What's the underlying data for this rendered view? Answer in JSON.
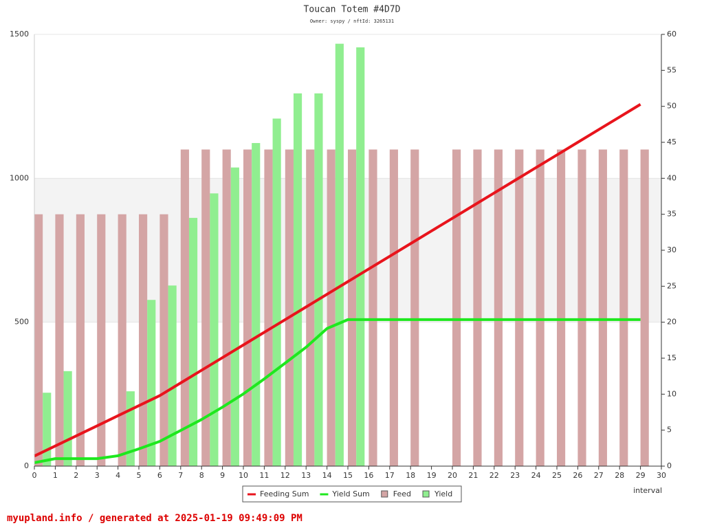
{
  "chart_data": {
    "type": "bar_line",
    "title": "Toucan Totem #4D7D",
    "subtitle": "Owner: syspy / nftId: 3265131",
    "x_label": "interval",
    "footer": "myupland.info / generated at 2025-01-19 09:49:09 PM",
    "x": [
      0,
      1,
      2,
      3,
      4,
      5,
      6,
      7,
      8,
      9,
      10,
      11,
      12,
      13,
      14,
      15,
      16,
      17,
      18,
      19,
      20,
      21,
      22,
      23,
      24,
      25,
      26,
      27,
      28,
      29
    ],
    "xlim": [
      0,
      30
    ],
    "xticks": [
      0,
      1,
      2,
      3,
      4,
      5,
      6,
      7,
      8,
      9,
      10,
      11,
      12,
      13,
      14,
      15,
      16,
      17,
      18,
      19,
      20,
      21,
      22,
      23,
      24,
      25,
      26,
      27,
      28,
      29,
      30
    ],
    "ylim": [
      0,
      1500
    ],
    "yticks": [
      0,
      500,
      1000,
      1500
    ],
    "y2lim": [
      0,
      60
    ],
    "y2ticks": [
      0,
      5,
      10,
      15,
      20,
      25,
      30,
      35,
      40,
      45,
      50,
      55,
      60
    ],
    "highlight_band": [
      500,
      1000
    ],
    "series": [
      {
        "name": "Feeding Sum",
        "kind": "line",
        "color": "#e8141c",
        "values": [
          35,
          70,
          105,
          140,
          175,
          210,
          245,
          289,
          333,
          377,
          421,
          465,
          509,
          553,
          597,
          641,
          685,
          729,
          773,
          817,
          861,
          905,
          949,
          993,
          1037,
          1081,
          1125,
          1169,
          1213,
          1257
        ]
      },
      {
        "name": "Yield Sum",
        "kind": "line",
        "color": "#1ee81e",
        "values": [
          12,
          26,
          26,
          26,
          36,
          60,
          86,
          124,
          162,
          205,
          251,
          303,
          358,
          413,
          478,
          509,
          509,
          509,
          509,
          509,
          509,
          509,
          509,
          509,
          509,
          509,
          509,
          509,
          509,
          509
        ]
      },
      {
        "name": "Feed",
        "kind": "bar",
        "axis": "y2",
        "color": "#d4a5a5",
        "values": [
          35,
          35,
          35,
          35,
          35,
          35,
          35,
          44,
          44,
          44,
          44,
          44,
          44,
          44,
          44,
          44,
          44,
          44,
          44,
          null,
          44,
          44,
          44,
          44,
          44,
          44,
          44,
          44,
          44,
          44
        ]
      },
      {
        "name": "Yield",
        "kind": "bar",
        "axis": "y2",
        "color": "#90ee90",
        "values": [
          10.2,
          13.2,
          null,
          null,
          10.4,
          23.1,
          25.1,
          34.5,
          37.9,
          41.5,
          44.9,
          48.3,
          51.8,
          51.8,
          58.7,
          58.2,
          null,
          null,
          null,
          null,
          null,
          null,
          null,
          null,
          null,
          null,
          null,
          null,
          null,
          null
        ]
      }
    ]
  }
}
